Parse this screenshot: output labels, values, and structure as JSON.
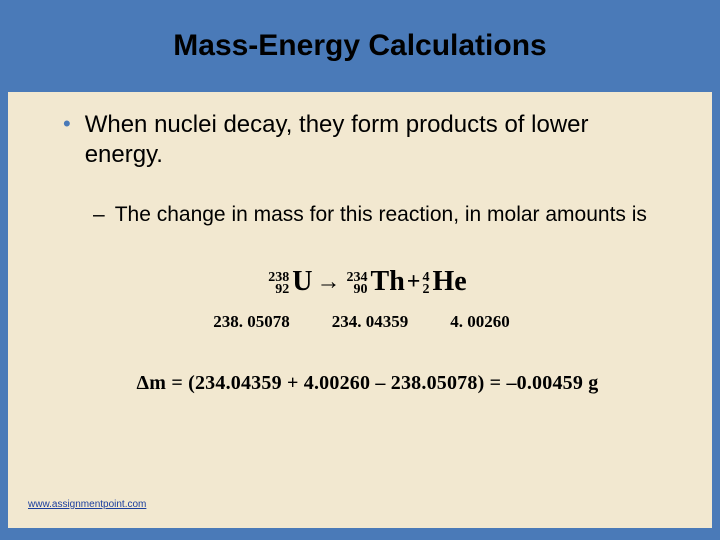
{
  "title": "Mass-Energy Calculations",
  "bullets": {
    "main": "When nuclei decay, they form products of lower energy.",
    "sub": "The change in mass for this reaction, in molar amounts is"
  },
  "reaction": {
    "reactant": {
      "mass": "238",
      "atno": "92",
      "symbol": "U"
    },
    "product1": {
      "mass": "234",
      "atno": "90",
      "symbol": "Th"
    },
    "product2": {
      "mass": "4",
      "atno": "2",
      "symbol": "He"
    },
    "arrow": "→",
    "plus": "+"
  },
  "masses": {
    "reactant": "238. 05078",
    "product1": "234. 04359",
    "product2": "4. 00260"
  },
  "delta_equation": "Δm = (234.04359 + 4.00260 – 238.05078) = –0.00459 g",
  "footer": "www.assignmentpoint.com",
  "colors": {
    "slide_bg": "#4a7ab8",
    "content_bg": "#f2e8d0",
    "bullet_dot": "#4a7ab8",
    "link": "#1a3e9e",
    "text": "#000000"
  }
}
